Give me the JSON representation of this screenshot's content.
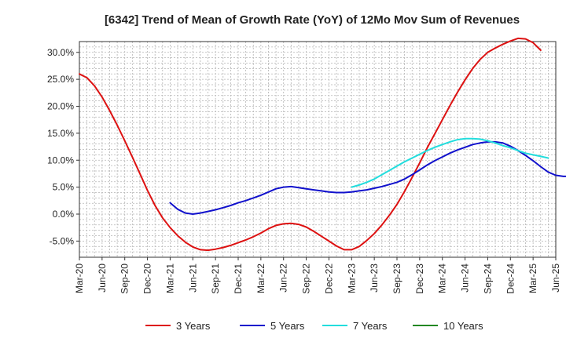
{
  "chart_data": {
    "type": "line",
    "title": "[6342]  Trend of Mean of Growth Rate (YoY) of 12Mo Mov Sum of Revenues",
    "xlabel": "",
    "ylabel": "",
    "ylim": [
      -8,
      32
    ],
    "yticks": [
      -5,
      0,
      5,
      10,
      15,
      20,
      25,
      30
    ],
    "ytick_labels": [
      "-5.0%",
      "0.0%",
      "5.0%",
      "10.0%",
      "15.0%",
      "20.0%",
      "25.0%",
      "30.0%"
    ],
    "xrange": [
      0,
      63
    ],
    "xtick_labels": [
      "Mar-20",
      "Jun-20",
      "Sep-20",
      "Dec-20",
      "Mar-21",
      "Jun-21",
      "Sep-21",
      "Dec-21",
      "Mar-22",
      "Jun-22",
      "Sep-22",
      "Dec-22",
      "Mar-23",
      "Jun-23",
      "Sep-23",
      "Dec-23",
      "Mar-24",
      "Jun-24",
      "Sep-24",
      "Dec-24",
      "Mar-25",
      "Jun-25"
    ],
    "grid": true,
    "legend_position": "bottom",
    "series": [
      {
        "name": "3 Years",
        "color": "#dd1111",
        "start": 0,
        "values": [
          26.0,
          25.3,
          23.8,
          21.7,
          19.2,
          16.5,
          13.6,
          10.6,
          7.5,
          4.4,
          1.6,
          -0.7,
          -2.5,
          -4.0,
          -5.2,
          -6.1,
          -6.6,
          -6.7,
          -6.5,
          -6.2,
          -5.8,
          -5.3,
          -4.8,
          -4.2,
          -3.5,
          -2.7,
          -2.1,
          -1.8,
          -1.7,
          -1.9,
          -2.4,
          -3.2,
          -4.1,
          -5.0,
          -5.9,
          -6.6,
          -6.6,
          -6.0,
          -4.9,
          -3.6,
          -2.0,
          -0.2,
          1.8,
          4.2,
          6.8,
          9.5,
          12.3,
          14.9,
          17.5,
          20.1,
          22.6,
          24.9,
          27.0,
          28.7,
          30.0,
          30.8,
          31.5,
          32.1,
          32.6,
          32.5,
          31.8,
          30.4
        ]
      },
      {
        "name": "5 Years",
        "color": "#1111cc",
        "start": 12,
        "values": [
          2.1,
          0.9,
          0.2,
          0.0,
          0.2,
          0.5,
          0.8,
          1.2,
          1.6,
          2.1,
          2.5,
          3.0,
          3.5,
          4.1,
          4.7,
          5.0,
          5.1,
          4.9,
          4.7,
          4.5,
          4.3,
          4.1,
          4.0,
          4.0,
          4.1,
          4.3,
          4.5,
          4.8,
          5.1,
          5.5,
          5.9,
          6.5,
          7.3,
          8.2,
          9.1,
          9.9,
          10.6,
          11.3,
          11.9,
          12.4,
          12.9,
          13.2,
          13.4,
          13.4,
          13.2,
          12.6,
          11.8,
          10.9,
          9.9,
          8.8,
          7.8,
          7.2,
          7.0,
          7.0
        ]
      },
      {
        "name": "7 Years",
        "color": "#22dddd",
        "start": 36,
        "values": [
          5.0,
          5.4,
          5.9,
          6.5,
          7.3,
          8.1,
          8.9,
          9.7,
          10.4,
          11.1,
          11.8,
          12.4,
          12.9,
          13.4,
          13.8,
          14.0,
          14.0,
          13.9,
          13.6,
          13.2,
          12.7,
          12.3,
          11.8,
          11.3,
          11.0,
          10.7,
          10.4
        ]
      },
      {
        "name": "10 Years",
        "color": "#228822",
        "start": 0,
        "values": []
      }
    ]
  }
}
